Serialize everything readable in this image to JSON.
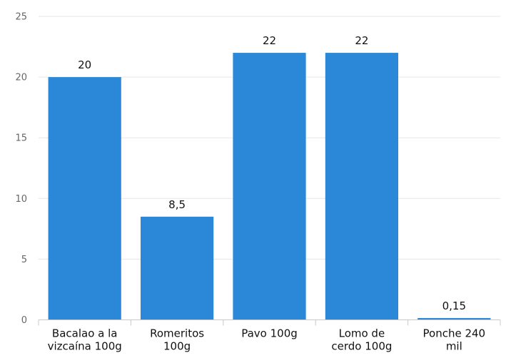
{
  "colors": {
    "bar": "#2b88d8",
    "grid": "#e6e6e6",
    "axis": "#c8c8c8",
    "tick_text": "#666666",
    "label_text": "#111111"
  },
  "chart_data": {
    "type": "bar",
    "title": "",
    "xlabel": "",
    "ylabel": "",
    "ylim": [
      0,
      25
    ],
    "y_ticks": [
      0,
      5,
      10,
      15,
      20,
      25
    ],
    "grid": true,
    "legend": "none",
    "categories": [
      [
        "Bacalao a la",
        "vizcaína 100g"
      ],
      [
        "Romeritos",
        "100g"
      ],
      [
        "Pavo 100g"
      ],
      [
        "Lomo de",
        "cerdo 100g"
      ],
      [
        "Ponche 240",
        "mil"
      ]
    ],
    "values": [
      20,
      8.5,
      22,
      22,
      0.15
    ],
    "data_labels": [
      "20",
      "8,5",
      "22",
      "22",
      "0,15"
    ]
  }
}
